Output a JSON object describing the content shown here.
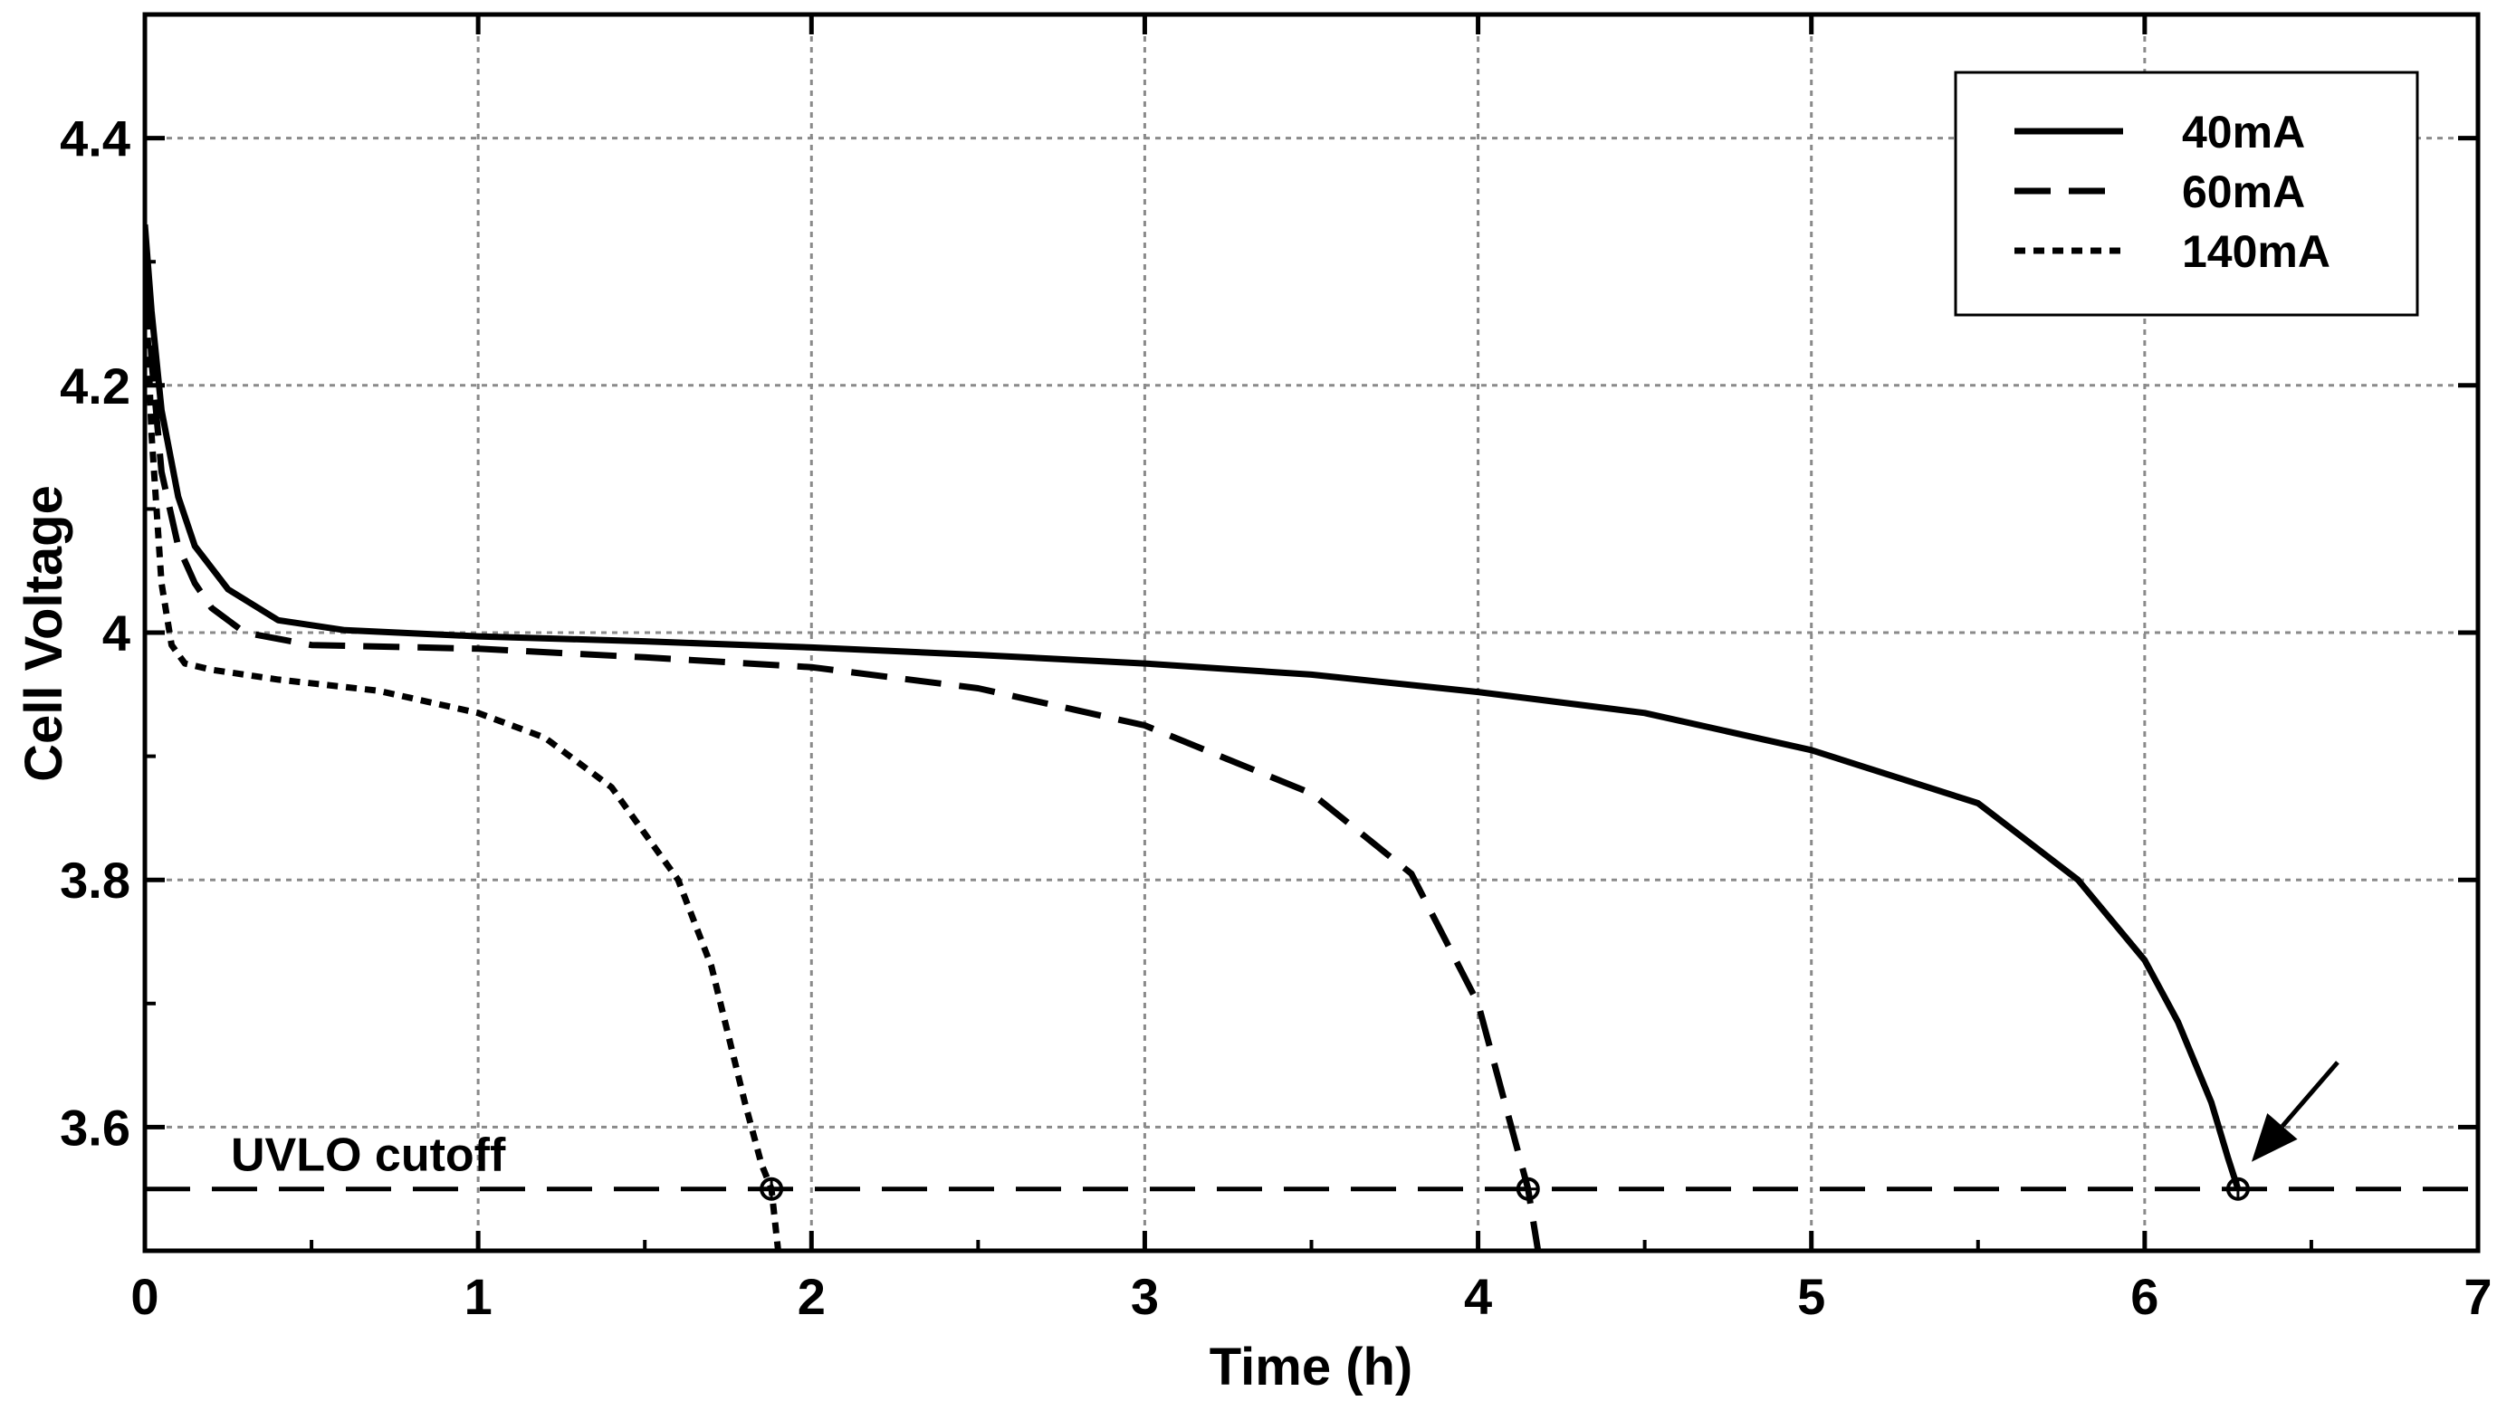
{
  "chart_data": {
    "type": "line",
    "title": "",
    "xlabel": "Time (h)",
    "ylabel": "Cell Voltage",
    "xlim": [
      0,
      7
    ],
    "ylim": [
      3.5,
      4.5
    ],
    "xticks": [
      0,
      1,
      2,
      3,
      4,
      5,
      6,
      7
    ],
    "yticks": [
      3.6,
      3.8,
      4,
      4.2,
      4.4
    ],
    "xtick_labels": [
      "0",
      "1",
      "2",
      "3",
      "4",
      "5",
      "6",
      "7"
    ],
    "ytick_labels": [
      "3.6",
      "3.8",
      "4",
      "4.2",
      "4.4"
    ],
    "grid": true,
    "legend_position": "top-right",
    "series": [
      {
        "name": "40mA",
        "dash": "solid",
        "x": [
          0,
          0.02,
          0.05,
          0.1,
          0.15,
          0.25,
          0.4,
          0.6,
          1.0,
          1.5,
          2.0,
          2.5,
          3.0,
          3.5,
          4.0,
          4.5,
          5.0,
          5.5,
          5.8,
          6.0,
          6.1,
          6.2,
          6.25,
          6.28
        ],
        "y": [
          4.33,
          4.26,
          4.18,
          4.11,
          4.07,
          4.035,
          4.01,
          4.002,
          3.997,
          3.993,
          3.988,
          3.982,
          3.975,
          3.966,
          3.952,
          3.935,
          3.905,
          3.862,
          3.8,
          3.735,
          3.685,
          3.62,
          3.575,
          3.55
        ]
      },
      {
        "name": "60mA",
        "dash": "long-dash",
        "x": [
          0,
          0.02,
          0.05,
          0.1,
          0.15,
          0.2,
          0.3,
          0.5,
          1.0,
          1.5,
          2.0,
          2.5,
          3.0,
          3.5,
          3.8,
          4.0,
          4.1,
          4.15,
          4.18
        ],
        "y": [
          4.32,
          4.22,
          4.13,
          4.07,
          4.04,
          4.02,
          4.0,
          3.99,
          3.987,
          3.98,
          3.972,
          3.955,
          3.925,
          3.87,
          3.805,
          3.7,
          3.6,
          3.55,
          3.5
        ]
      },
      {
        "name": "140mA",
        "dash": "dotted",
        "x": [
          0,
          0.02,
          0.05,
          0.08,
          0.12,
          0.2,
          0.4,
          0.7,
          1.0,
          1.2,
          1.4,
          1.6,
          1.7,
          1.8,
          1.85,
          1.88,
          1.9
        ],
        "y": [
          4.3,
          4.16,
          4.04,
          3.99,
          3.975,
          3.97,
          3.962,
          3.953,
          3.935,
          3.915,
          3.875,
          3.8,
          3.73,
          3.62,
          3.57,
          3.55,
          3.5
        ]
      }
    ],
    "reference_lines": [
      {
        "y": 3.55,
        "label": "UVLO cutoff",
        "dash": "long-dash"
      }
    ],
    "markers": [
      {
        "x": 1.88,
        "y": 3.55,
        "shape": "circle-plus"
      },
      {
        "x": 4.15,
        "y": 3.55,
        "shape": "circle-plus"
      },
      {
        "x": 6.28,
        "y": 3.55,
        "shape": "circle-plus"
      }
    ],
    "annotations": [
      {
        "type": "arrow",
        "target_x": 6.28,
        "target_y": 3.55,
        "direction": "from upper-right"
      }
    ]
  }
}
